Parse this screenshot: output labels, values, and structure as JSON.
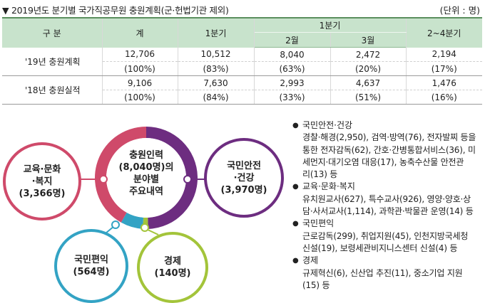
{
  "title": "▼ 2019년도 분기별 국가직공무원 충원계획(군·헌법기관 제외)",
  "unit": "(단위 : 명)",
  "table": {
    "header": {
      "category": "구 분",
      "total": "계",
      "q1": "1분기",
      "q1_group": "1분기",
      "feb": "2월",
      "mar": "3월",
      "q2_4": "2~4분기"
    },
    "rows": [
      {
        "label": "'19년 충원계획",
        "values": [
          "12,706",
          "10,512",
          "8,040",
          "2,472",
          "2,194"
        ],
        "percents": [
          "(100%)",
          "(83%)",
          "(63%)",
          "(20%)",
          "(17%)"
        ]
      },
      {
        "label": "'18년 충원실적",
        "values": [
          "9,106",
          "7,630",
          "2,993",
          "4,637",
          "1,476"
        ],
        "percents": [
          "(100%)",
          "(84%)",
          "(33%)",
          "(51%)",
          "(16%)"
        ]
      }
    ]
  },
  "diagram": {
    "center": [
      "충원인력",
      "(8,040명)의",
      "분야별",
      "주요내역"
    ],
    "edu": [
      "교육·문화",
      "·복지",
      "(3,366명)"
    ],
    "safety": [
      "국민안전",
      "·건강",
      "(3,970명)"
    ],
    "convenience": [
      "국민편익",
      "(564명)"
    ],
    "economy": [
      "경제",
      "(140명)"
    ],
    "ring_shares": {
      "safety": 3970,
      "economy": 140,
      "convenience": 564,
      "edu": 3366
    },
    "colors": {
      "safety": "#6d2d80",
      "economy": "#a3c43a",
      "convenience": "#33a3c4",
      "edu": "#cf4a6a"
    }
  },
  "list": [
    {
      "category": "국민안전·건강",
      "lines": [
        "경찰·해경(2,950), 검역·방역(76), 전자발찌 등을",
        "통한 전자감독(62), 간호·간병통합서비스(36), 미",
        "세먼지·대기오염 대응(17), 농축수산물 안전관",
        "리(13) 등"
      ]
    },
    {
      "category": "교육·문화·복지",
      "lines": [
        "유치원교사(627), 특수교사(926), 영양·양호·상",
        "담·사서교사(1,114), 과학관·박물관 운영(14) 등"
      ]
    },
    {
      "category": "국민편익",
      "lines": [
        "근로감독(299), 취업지원(45), 인천지방국세청",
        "신설(19), 보령세관비지니스센터 신설(4) 등"
      ]
    },
    {
      "category": "경제",
      "lines": [
        "규제혁신(6), 신산업 추진(11), 중소기업 지원",
        "(15) 등"
      ]
    }
  ]
}
